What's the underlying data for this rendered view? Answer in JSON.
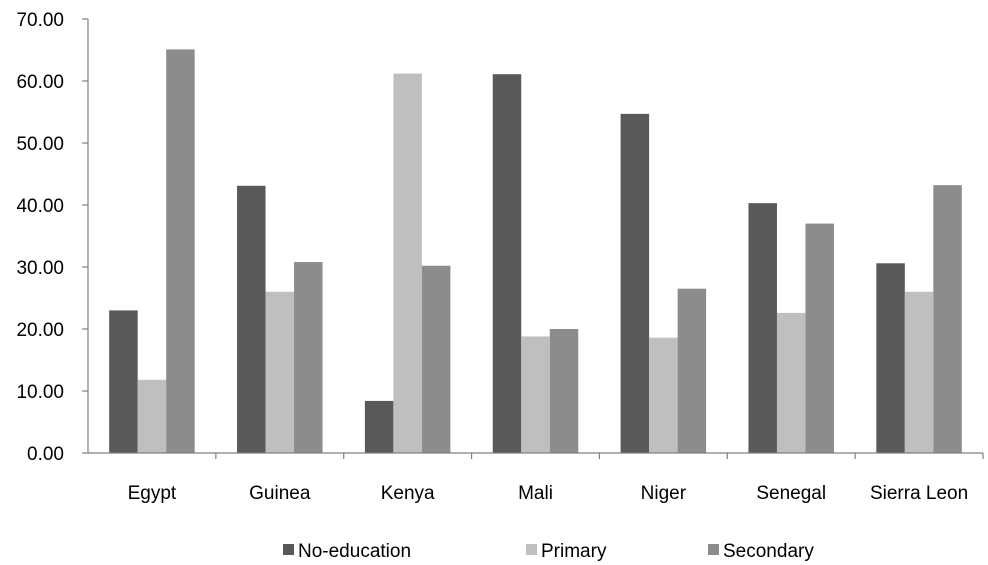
{
  "chart_data": {
    "type": "bar",
    "title": "",
    "xlabel": "",
    "ylabel": "",
    "ylim": [
      0,
      70
    ],
    "yticks": [
      "0.00",
      "10.00",
      "20.00",
      "30.00",
      "40.00",
      "50.00",
      "60.00",
      "70.00"
    ],
    "grid": false,
    "legend_position": "bottom",
    "categories": [
      "Egypt",
      "Guinea",
      "Kenya",
      "Mali",
      "Niger",
      "Senegal",
      "Sierra Leon"
    ],
    "series": [
      {
        "name": "No-education",
        "color": "#595959",
        "values": [
          23.0,
          43.1,
          8.4,
          61.1,
          54.7,
          40.3,
          30.6
        ]
      },
      {
        "name": "Primary",
        "color": "#bfbfbf",
        "values": [
          11.8,
          26.0,
          61.2,
          18.8,
          18.6,
          22.6,
          26.0
        ]
      },
      {
        "name": "Secondary",
        "color": "#8c8c8c",
        "values": [
          65.1,
          30.8,
          30.2,
          20.0,
          26.5,
          37.0,
          43.2
        ]
      }
    ]
  }
}
